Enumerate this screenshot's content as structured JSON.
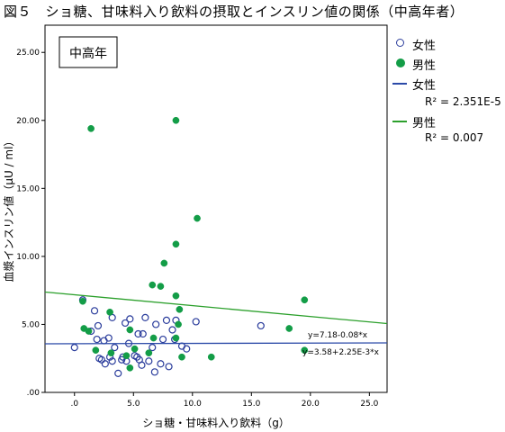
{
  "figure_title": "図５　ショ糖、甘味料入り飲料の摂取とインスリン値の関係（中高年者）",
  "colors": {
    "female": "#2b3d9c",
    "male": "#139d47",
    "female_line": "#2b4aa8",
    "male_line": "#2ca02c"
  },
  "legend": {
    "female_marker": "女性",
    "male_marker": "男性",
    "female_line": "女性",
    "female_r2": "R² = 2.351E-5",
    "male_line": "男性",
    "male_r2": "R² = 0.007"
  },
  "chart_data": {
    "type": "scatter",
    "panel_label": "中高年",
    "xlabel": "ショ糖・甘味料入り飲料（g）",
    "ylabel": "血漿インスリン値（μU / ml）",
    "xlim": [
      -2.5,
      26.5
    ],
    "ylim": [
      0,
      27
    ],
    "x_ticks": [
      0,
      5,
      10,
      15,
      20,
      25
    ],
    "x_tick_labels": [
      ".0",
      "5.0",
      "10.0",
      "15.0",
      "20.0",
      "25.0"
    ],
    "y_ticks": [
      0,
      5,
      10,
      15,
      20,
      25
    ],
    "y_tick_labels": [
      ".00",
      "5.00",
      "10.00",
      "15.00",
      "20.00",
      "25.00"
    ],
    "series": [
      {
        "name": "女性",
        "marker": "open-circle",
        "points": [
          [
            0,
            3.3
          ],
          [
            0.7,
            6.8
          ],
          [
            1.4,
            4.5
          ],
          [
            1.7,
            6.0
          ],
          [
            1.9,
            3.9
          ],
          [
            2.0,
            4.9
          ],
          [
            2.1,
            2.5
          ],
          [
            2.3,
            2.4
          ],
          [
            2.6,
            2.1
          ],
          [
            2.9,
            4.0
          ],
          [
            3.0,
            2.6
          ],
          [
            3.2,
            5.5
          ],
          [
            3.2,
            2.3
          ],
          [
            3.4,
            3.3
          ],
          [
            3.7,
            1.4
          ],
          [
            4.0,
            2.4
          ],
          [
            4.1,
            2.6
          ],
          [
            4.3,
            5.1
          ],
          [
            4.4,
            2.3
          ],
          [
            4.6,
            3.6
          ],
          [
            4.7,
            5.4
          ],
          [
            5.1,
            2.7
          ],
          [
            5.3,
            2.6
          ],
          [
            5.4,
            4.3
          ],
          [
            5.5,
            2.4
          ],
          [
            5.7,
            2.0
          ],
          [
            6.0,
            5.5
          ],
          [
            6.3,
            2.3
          ],
          [
            6.6,
            3.3
          ],
          [
            6.9,
            5.0
          ],
          [
            7.3,
            2.1
          ],
          [
            7.5,
            3.9
          ],
          [
            7.8,
            5.3
          ],
          [
            8.0,
            1.9
          ],
          [
            8.3,
            4.6
          ],
          [
            8.5,
            3.9
          ],
          [
            8.6,
            5.3
          ],
          [
            9.1,
            3.4
          ],
          [
            9.5,
            3.2
          ],
          [
            10.3,
            5.2
          ],
          [
            15.8,
            4.9
          ],
          [
            5.8,
            4.3
          ],
          [
            2.5,
            3.8
          ],
          [
            6.8,
            1.5
          ]
        ]
      },
      {
        "name": "男性",
        "marker": "filled-circle",
        "points": [
          [
            1.4,
            19.4
          ],
          [
            8.6,
            20.0
          ],
          [
            10.4,
            12.8
          ],
          [
            8.6,
            10.9
          ],
          [
            7.6,
            9.5
          ],
          [
            6.6,
            7.9
          ],
          [
            7.3,
            7.8
          ],
          [
            8.6,
            7.1
          ],
          [
            0.7,
            6.7
          ],
          [
            8.9,
            6.1
          ],
          [
            19.5,
            6.8
          ],
          [
            3.0,
            5.9
          ],
          [
            0.8,
            4.7
          ],
          [
            1.2,
            4.5
          ],
          [
            4.7,
            4.6
          ],
          [
            8.8,
            5.0
          ],
          [
            8.6,
            4.0
          ],
          [
            6.7,
            4.0
          ],
          [
            18.2,
            4.7
          ],
          [
            5.1,
            3.2
          ],
          [
            1.8,
            3.1
          ],
          [
            3.1,
            2.9
          ],
          [
            6.3,
            2.9
          ],
          [
            4.4,
            2.7
          ],
          [
            9.1,
            2.6
          ],
          [
            11.6,
            2.6
          ],
          [
            4.7,
            1.8
          ],
          [
            19.5,
            3.1
          ]
        ]
      }
    ],
    "fit_lines": [
      {
        "name": "女性",
        "equation": "y=3.58+2.25E-3*x",
        "intercept": 3.58,
        "slope": 0.00225
      },
      {
        "name": "男性",
        "equation": "y=7.18-0.08*x",
        "intercept": 7.18,
        "slope": -0.08
      }
    ]
  }
}
